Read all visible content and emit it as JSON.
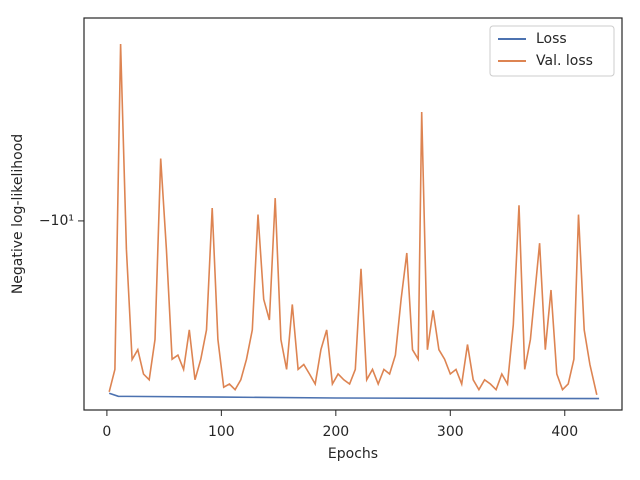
{
  "chart_data": {
    "type": "line",
    "xlabel": "Epochs",
    "ylabel": "Negative log-likelihood",
    "yscale": "symlog",
    "xlim": [
      -20,
      450
    ],
    "xticks": [
      0,
      100,
      200,
      300,
      400
    ],
    "ylim": [
      -47,
      -1.9
    ],
    "yticks": [
      {
        "value": -10,
        "label": "−10¹"
      }
    ],
    "legend": "upper right",
    "series": [
      {
        "name": "Loss",
        "color": "#4c72b0",
        "x": [
          2,
          10,
          100,
          200,
          300,
          430
        ],
        "values": [
          -41,
          -42,
          -42.3,
          -42.6,
          -42.7,
          -42.8
        ]
      },
      {
        "name": "Val. loss",
        "color": "#dd8452",
        "x": [
          2,
          7,
          12,
          17,
          22,
          27,
          32,
          37,
          42,
          47,
          52,
          57,
          62,
          67,
          72,
          77,
          82,
          87,
          92,
          97,
          102,
          107,
          112,
          117,
          122,
          127,
          132,
          137,
          142,
          147,
          152,
          157,
          162,
          167,
          172,
          177,
          182,
          187,
          192,
          197,
          202,
          207,
          212,
          217,
          222,
          227,
          232,
          237,
          242,
          247,
          252,
          257,
          262,
          267,
          272,
          275,
          280,
          285,
          290,
          295,
          300,
          305,
          310,
          315,
          320,
          325,
          330,
          335,
          340,
          345,
          350,
          355,
          360,
          365,
          370,
          375,
          378,
          383,
          388,
          393,
          398,
          403,
          408,
          412,
          417,
          422,
          428
        ],
        "values": [
          -40.5,
          -33.7,
          -2.35,
          -12.6,
          -31.1,
          -28.7,
          -35,
          -36.7,
          -26.4,
          -6,
          -12.6,
          -31,
          -30,
          -33.7,
          -24.4,
          -36.7,
          -31,
          -24.4,
          -9,
          -26.4,
          -39,
          -38,
          -39.8,
          -36.7,
          -31,
          -24.4,
          -9.5,
          -19,
          -22.5,
          -8.3,
          -26.4,
          -33.7,
          -19.8,
          -33.7,
          -32.4,
          -35,
          -38,
          -28.7,
          -24.4,
          -38,
          -35,
          -36.7,
          -38,
          -33.7,
          -14.8,
          -36.7,
          -33.7,
          -38,
          -33.7,
          -35,
          -30,
          -19,
          -13,
          -28.7,
          -31,
          -4.1,
          -28.7,
          -20.8,
          -28.7,
          -31,
          -35,
          -33.7,
          -38,
          -27.5,
          -36.7,
          -39.8,
          -36.7,
          -38,
          -39.8,
          -35,
          -38,
          -23.4,
          -8.8,
          -33.7,
          -26.4,
          -16.2,
          -12,
          -28.7,
          -17.6,
          -35,
          -39.8,
          -38,
          -31,
          -9.5,
          -24.4,
          -32.4,
          -41.5
        ]
      }
    ]
  }
}
